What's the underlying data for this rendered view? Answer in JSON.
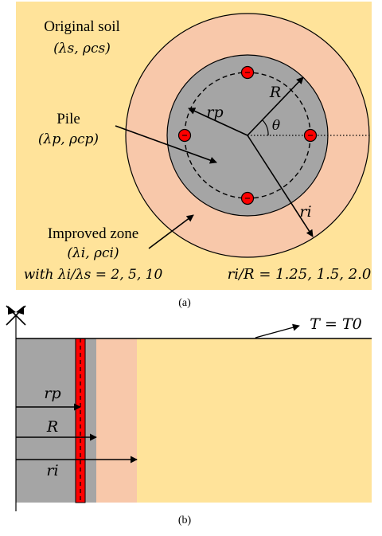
{
  "colors": {
    "soil": "#ffe39a",
    "improved_zone": "#f8c8aa",
    "pile": "#a5a5a5",
    "pipe": "#ff0000",
    "line": "#000000"
  },
  "panel_a": {
    "original_soil_label": "Original soil",
    "original_soil_params": "(λs, ρcs)",
    "pile_label": "Pile",
    "pile_params": "(λp, ρcp)",
    "improved_zone_label": "Improved zone",
    "improved_zone_params": "(λi, ρci)",
    "conductivity_ratios": "with λi/λs = 2, 5, 10",
    "radius_ratios": "ri/R = 1.25, 1.5, 2.0",
    "r_p": "rp",
    "R": "R",
    "theta": "θ",
    "r_i": "ri",
    "caption": "(a)"
  },
  "panel_b": {
    "boundary_condition": "T = T0",
    "r_p": "rp",
    "R": "R",
    "r_i": "ri",
    "caption": "(b)"
  }
}
